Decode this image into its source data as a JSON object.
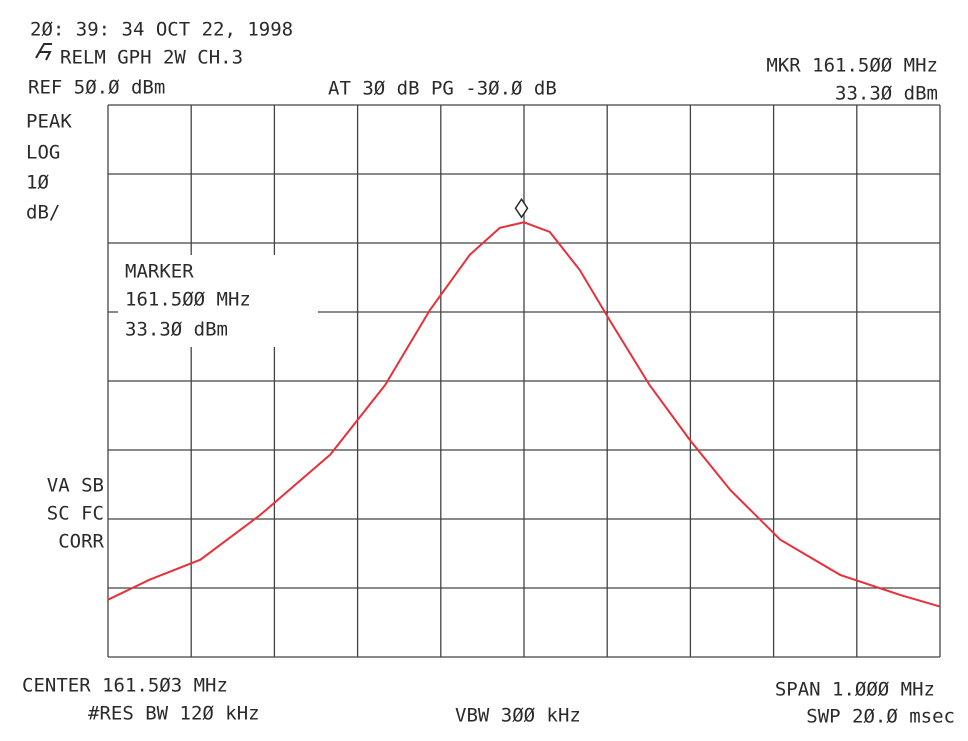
{
  "chart_data": {
    "type": "line",
    "timestamp": "2Ø: 39: 34 OCT 22, 1998",
    "title": "RELM GPH 2W CH.3",
    "reference": "REF 5Ø.Ø dBm",
    "attenuation": "AT 3Ø dB PG -3Ø.Ø dB",
    "marker_readout": [
      "MKR 161.5ØØ MHz",
      "33.3Ø dBm"
    ],
    "left_labels": [
      "PEAK",
      "LOG",
      "1Ø",
      "dB/"
    ],
    "status_labels": [
      "VA SB",
      "SC FC",
      "CORR"
    ],
    "marker_box": [
      "MARKER",
      "161.5ØØ MHz",
      "33.3Ø dBm"
    ],
    "center": "CENTER 161.5Ø3 MHz",
    "res_bw": "#RES BW 12Ø kHz",
    "vbw": "VBW 3ØØ kHz",
    "span": "SPAN 1.ØØØ MHz",
    "sweep": "SWP 2Ø.Ø msec",
    "xlim": [
      161.003,
      162.003
    ],
    "ylim": [
      -30,
      50
    ],
    "grid": true,
    "color": "#e8303a",
    "x": [
      161.003,
      161.053,
      161.114,
      161.186,
      161.27,
      161.336,
      161.39,
      161.438,
      161.474,
      161.503,
      161.534,
      161.57,
      161.606,
      161.654,
      161.702,
      161.751,
      161.811,
      161.883,
      161.955,
      162.003
    ],
    "values": [
      -21.7,
      -18.8,
      -15.9,
      -9.4,
      -0.7,
      9.4,
      20.3,
      28.3,
      32.2,
      33.0,
      31.6,
      26.1,
      18.8,
      9.4,
      1.5,
      -5.8,
      -13.0,
      -18.1,
      -21.0,
      -22.7
    ],
    "marker": {
      "x": 161.5,
      "y": 33.3
    }
  }
}
